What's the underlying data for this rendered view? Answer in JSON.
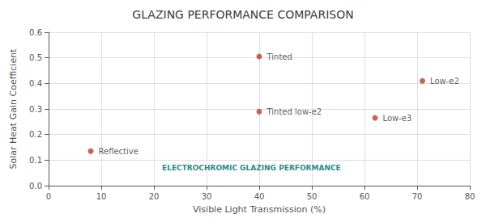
{
  "chart_data": {
    "type": "scatter",
    "title": "GLAZING PERFORMANCE COMPARISON",
    "xlabel": "Visible Light Transmission (%)",
    "ylabel": "Solar Heat Gain Coefficient",
    "x": [
      40,
      40,
      8,
      71,
      62
    ],
    "values": [
      0.505,
      0.29,
      0.135,
      0.41,
      0.265
    ],
    "labels": [
      "Tinted",
      "Tinted low-e2",
      "Reflective",
      "Low-e2",
      "Low-e3"
    ],
    "color": "#c0392b",
    "xlim": [
      0,
      80
    ],
    "ylim": [
      0,
      0.6
    ],
    "xticks": [
      0,
      10,
      20,
      30,
      40,
      50,
      60,
      70,
      80
    ],
    "yticks": [
      {
        "value": 0,
        "label": "0.0"
      },
      0.1,
      0.2,
      0.3,
      0.4,
      0.5,
      0.6
    ],
    "grid": true,
    "annotations": [
      "ELECTROCHROMIC GLAZING PERFORMANCE"
    ]
  }
}
